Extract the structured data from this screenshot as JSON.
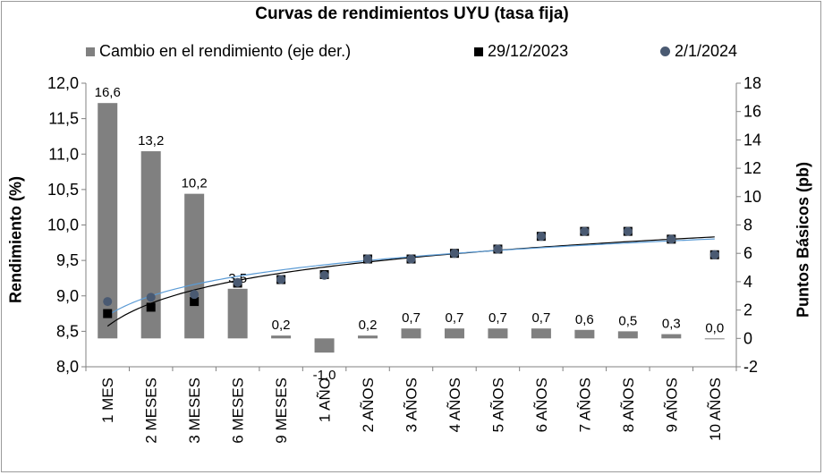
{
  "chart_data": {
    "type": "bar",
    "title": "Curvas de rendimientos UYU (tasa fija)",
    "categories": [
      "1 MES",
      "2 MESES",
      "3 MESES",
      "6 MESES",
      "9 MESES",
      "1 AÑO",
      "2 AÑOS",
      "3 AÑOS",
      "4 AÑOS",
      "5 AÑOS",
      "6 AÑOS",
      "7 AÑOS",
      "8 AÑOS",
      "9 AÑOS",
      "10 AÑOS"
    ],
    "ylabel_left": "Rendimiento (%)",
    "ylabel_right": "Puntos Básicos (pb)",
    "ylim_left": [
      8.0,
      12.0
    ],
    "ylim_right": [
      -2,
      18
    ],
    "yticks_left": [
      "8,0",
      "8,5",
      "9,0",
      "9,5",
      "10,0",
      "10,5",
      "11,0",
      "11,5",
      "12,0"
    ],
    "yticks_right": [
      "-2",
      "0",
      "2",
      "4",
      "6",
      "8",
      "10",
      "12",
      "14",
      "16",
      "18"
    ],
    "series": [
      {
        "name": "Cambio en el rendimiento (eje der.)",
        "type": "bar",
        "axis": "right",
        "color": "#808080",
        "values": [
          16.6,
          13.2,
          10.2,
          3.5,
          0.2,
          -1.0,
          0.2,
          0.7,
          0.7,
          0.7,
          0.7,
          0.6,
          0.5,
          0.3,
          0.0
        ],
        "labels": [
          "16,6",
          "13,2",
          "10,2",
          "3,5",
          "0,2",
          "-1,0",
          "0,2",
          "0,7",
          "0,7",
          "0,7",
          "0,7",
          "0,6",
          "0,5",
          "0,3",
          "0,0"
        ]
      },
      {
        "name": "29/12/2023",
        "type": "scatter",
        "marker": "square",
        "axis": "left",
        "color": "#000000",
        "values": [
          8.75,
          8.84,
          8.92,
          9.18,
          9.23,
          9.3,
          9.52,
          9.52,
          9.6,
          9.66,
          9.84,
          9.91,
          9.91,
          9.8,
          9.58
        ]
      },
      {
        "name": "2/1/2024",
        "type": "scatter",
        "marker": "circle",
        "axis": "left",
        "color": "#4a5a72",
        "values": [
          8.92,
          8.98,
          9.02,
          9.19,
          9.23,
          9.29,
          9.52,
          9.52,
          9.6,
          9.66,
          9.84,
          9.91,
          9.91,
          9.8,
          9.58
        ]
      }
    ],
    "trendlines": [
      {
        "series": "29/12/2023",
        "type": "logarithmic",
        "color": "#000000"
      },
      {
        "series": "2/1/2024",
        "type": "logarithmic",
        "color": "#5b9bd5"
      }
    ],
    "grid": false,
    "legend_position": "top"
  }
}
